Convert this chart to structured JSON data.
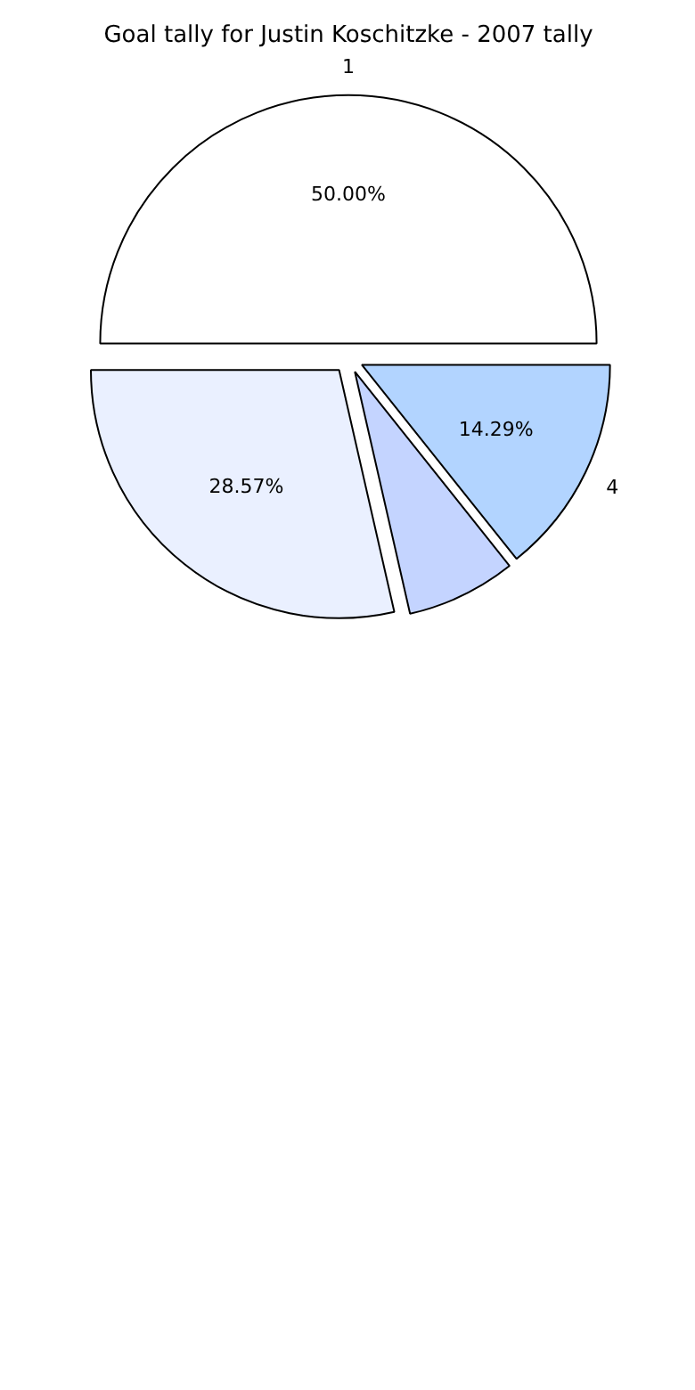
{
  "chart_data": {
    "type": "pie",
    "title": "Goal tally for Justin Koschitzke - 2007 tally",
    "categories": [
      "1",
      null,
      null,
      "4"
    ],
    "values": [
      50,
      28.57,
      7.14,
      14.29
    ],
    "colors": [
      "#ffffff",
      "#eaf0ff",
      "#c4d4ff",
      "#b2d4ff"
    ],
    "value_labels": [
      "50.00%",
      "28.57%",
      null,
      "14.29%"
    ]
  }
}
